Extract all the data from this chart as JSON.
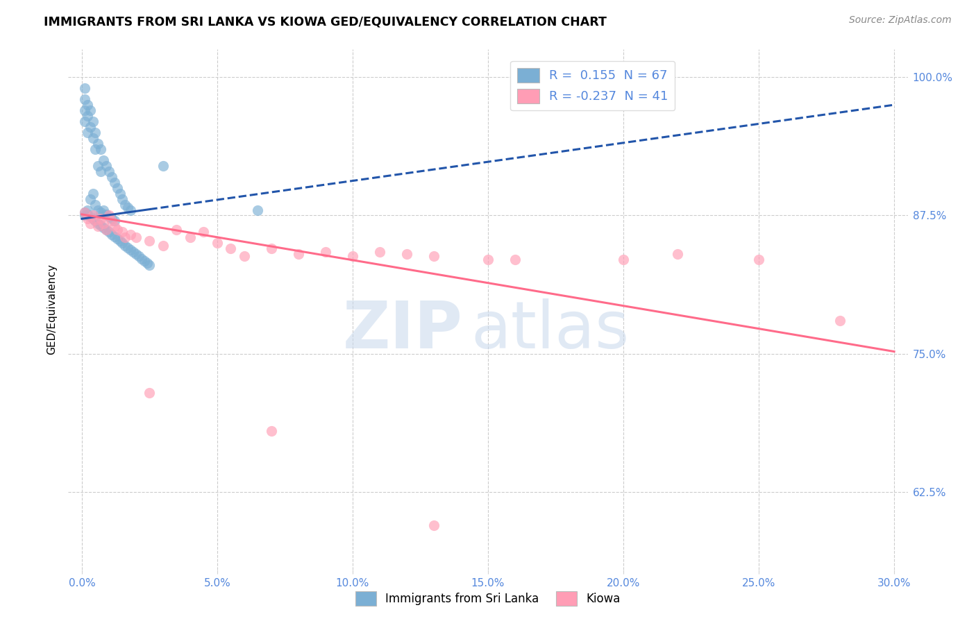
{
  "title": "IMMIGRANTS FROM SRI LANKA VS KIOWA GED/EQUIVALENCY CORRELATION CHART",
  "source": "Source: ZipAtlas.com",
  "ylabel": "GED/Equivalency",
  "yticks": [
    0.625,
    0.75,
    0.875,
    1.0
  ],
  "ytick_labels": [
    "62.5%",
    "75.0%",
    "87.5%",
    "100.0%"
  ],
  "xticks": [
    0.0,
    0.05,
    0.1,
    0.15,
    0.2,
    0.25,
    0.3
  ],
  "xtick_labels": [
    "0.0%",
    "5.0%",
    "10.0%",
    "15.0%",
    "20.0%",
    "25.0%",
    "30.0%"
  ],
  "xlim": [
    -0.005,
    0.305
  ],
  "ylim": [
    0.555,
    1.025
  ],
  "color_blue": "#7BAFD4",
  "color_pink": "#FF9DB5",
  "color_trendline_blue": "#2255AA",
  "color_trendline_pink": "#FF6B8A",
  "tick_color": "#5588DD",
  "blue_x": [
    0.001,
    0.001,
    0.001,
    0.001,
    0.001,
    0.002,
    0.002,
    0.002,
    0.002,
    0.003,
    0.003,
    0.003,
    0.004,
    0.004,
    0.004,
    0.005,
    0.005,
    0.005,
    0.006,
    0.006,
    0.006,
    0.007,
    0.007,
    0.007,
    0.008,
    0.008,
    0.009,
    0.009,
    0.01,
    0.01,
    0.011,
    0.011,
    0.012,
    0.012,
    0.013,
    0.014,
    0.015,
    0.016,
    0.017,
    0.018,
    0.001,
    0.002,
    0.003,
    0.004,
    0.005,
    0.006,
    0.007,
    0.008,
    0.009,
    0.01,
    0.011,
    0.012,
    0.013,
    0.014,
    0.015,
    0.016,
    0.017,
    0.018,
    0.019,
    0.02,
    0.021,
    0.022,
    0.023,
    0.024,
    0.025,
    0.065,
    0.03
  ],
  "blue_y": [
    0.99,
    0.98,
    0.97,
    0.96,
    0.875,
    0.975,
    0.965,
    0.95,
    0.88,
    0.97,
    0.955,
    0.89,
    0.96,
    0.945,
    0.895,
    0.95,
    0.935,
    0.885,
    0.94,
    0.92,
    0.88,
    0.935,
    0.915,
    0.878,
    0.925,
    0.88,
    0.92,
    0.876,
    0.915,
    0.874,
    0.91,
    0.872,
    0.905,
    0.87,
    0.9,
    0.895,
    0.89,
    0.885,
    0.882,
    0.88,
    0.878,
    0.876,
    0.874,
    0.872,
    0.87,
    0.868,
    0.866,
    0.864,
    0.862,
    0.86,
    0.858,
    0.856,
    0.854,
    0.852,
    0.85,
    0.848,
    0.846,
    0.844,
    0.842,
    0.84,
    0.838,
    0.836,
    0.834,
    0.832,
    0.83,
    0.88,
    0.92
  ],
  "pink_x": [
    0.001,
    0.002,
    0.003,
    0.004,
    0.005,
    0.006,
    0.007,
    0.008,
    0.009,
    0.01,
    0.011,
    0.012,
    0.013,
    0.015,
    0.016,
    0.018,
    0.02,
    0.025,
    0.03,
    0.035,
    0.04,
    0.045,
    0.05,
    0.055,
    0.06,
    0.07,
    0.08,
    0.09,
    0.1,
    0.11,
    0.12,
    0.13,
    0.15,
    0.16,
    0.2,
    0.22,
    0.25,
    0.28,
    0.025,
    0.07,
    0.13
  ],
  "pink_y": [
    0.878,
    0.872,
    0.868,
    0.875,
    0.871,
    0.865,
    0.872,
    0.868,
    0.862,
    0.875,
    0.87,
    0.865,
    0.862,
    0.86,
    0.855,
    0.858,
    0.855,
    0.852,
    0.848,
    0.862,
    0.855,
    0.86,
    0.85,
    0.845,
    0.838,
    0.845,
    0.84,
    0.842,
    0.838,
    0.842,
    0.84,
    0.838,
    0.835,
    0.835,
    0.835,
    0.84,
    0.835,
    0.78,
    0.715,
    0.68,
    0.595
  ],
  "blue_trendline_x0": 0.0,
  "blue_trendline_x1": 0.025,
  "blue_trendline_x2": 0.3,
  "blue_trendline_y0": 0.872,
  "blue_trendline_y1": 0.92,
  "blue_trendline_y2": 0.975,
  "pink_trendline_x0": 0.0,
  "pink_trendline_x1": 0.3,
  "pink_trendline_y0": 0.876,
  "pink_trendline_y1": 0.752
}
